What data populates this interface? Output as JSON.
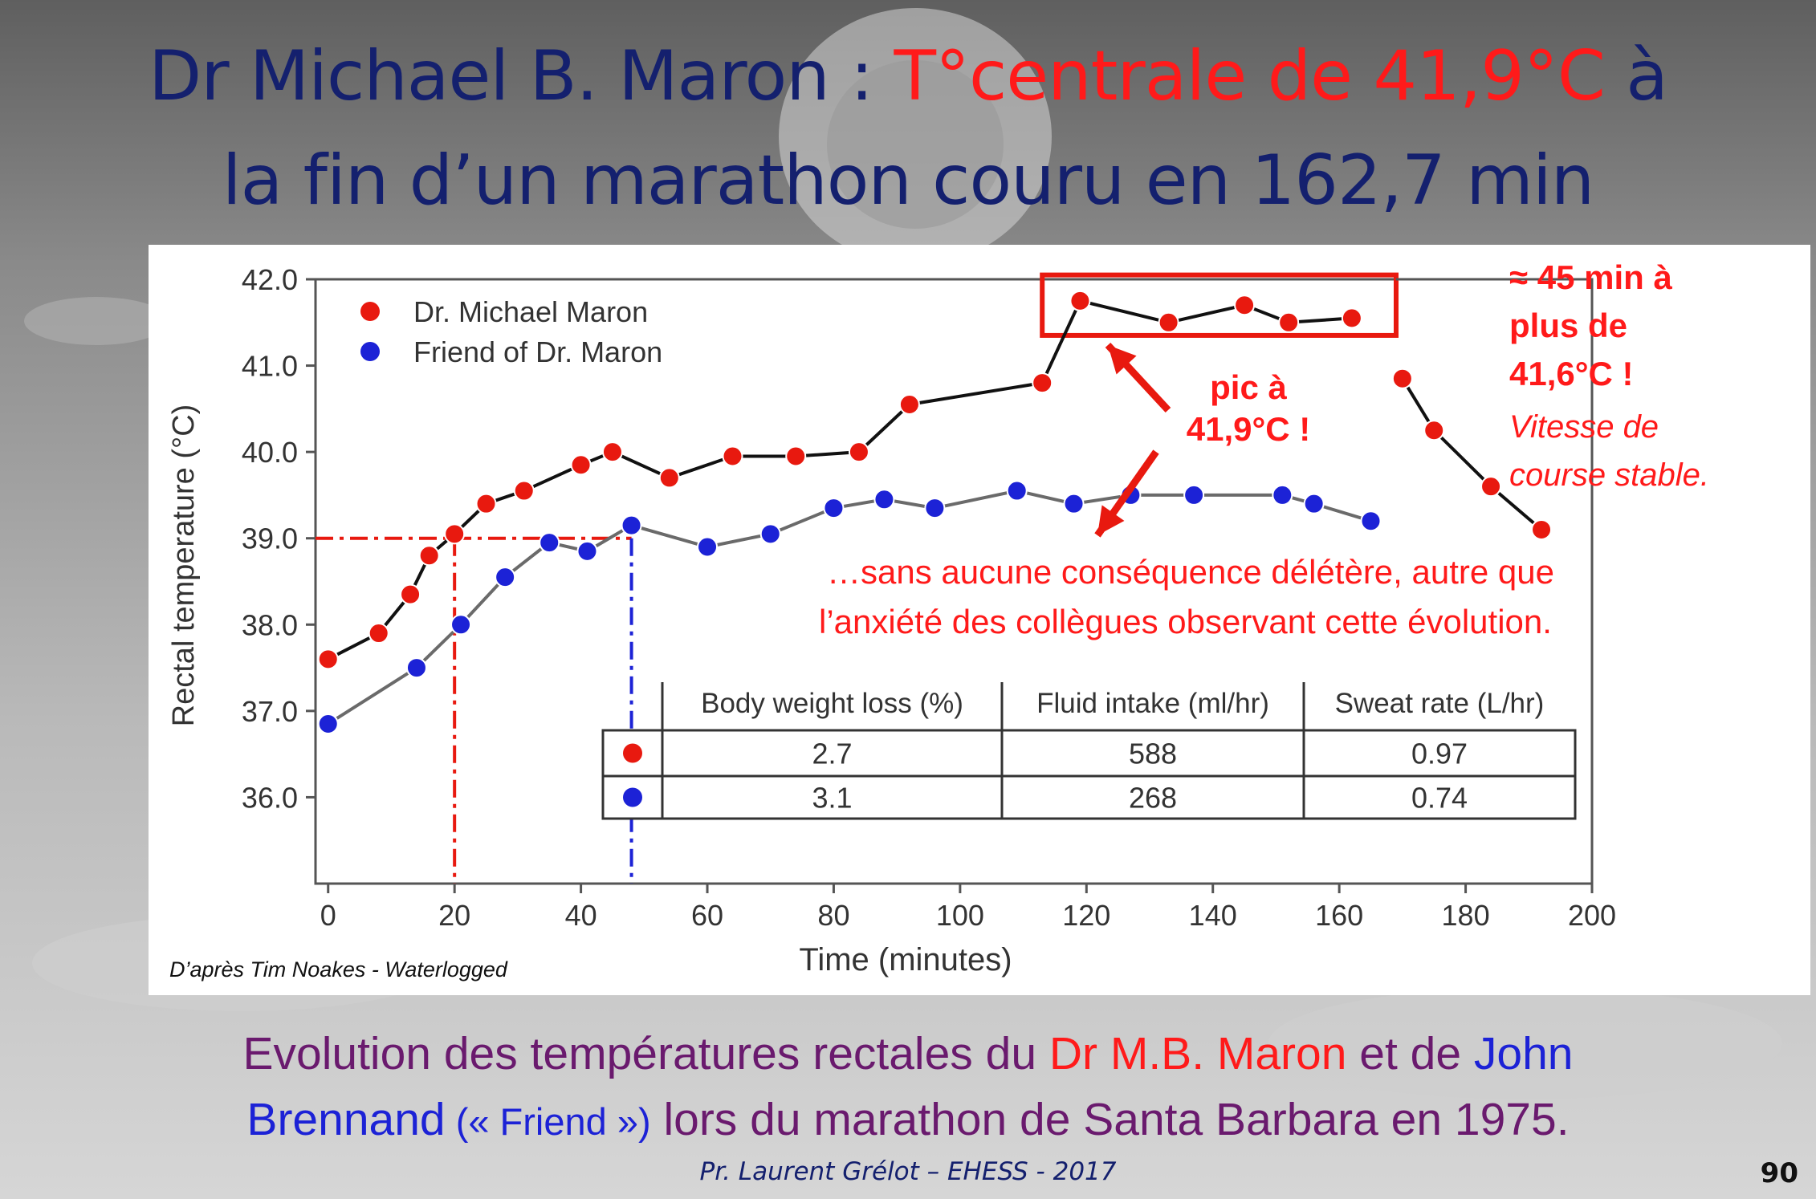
{
  "slide": {
    "title_part1": "Dr Michael B. Maron : ",
    "title_red": "T°centrale de 41,9°C",
    "title_part2": " à",
    "title_line2": "la fin d’un marathon couru en 162,7 min",
    "caption_a": "Evolution des températures rectales du ",
    "caption_red": "Dr M.B. Maron",
    "caption_b": " et de ",
    "caption_blue1": "John",
    "caption_blue2": "Brennand",
    "caption_blue_small": " (« Friend »)",
    "caption_c": " lors du marathon de Santa Barbara en 1975.",
    "footer": "Pr. Laurent Grélot – EHESS - 2017",
    "page_number": "90",
    "source_note": "D’après Tim Noakes - Waterlogged",
    "colors": {
      "title": "#14206e",
      "accent_red": "#ff1a1a",
      "accent_blue": "#1c22d6",
      "caption": "#6a1a6e"
    }
  },
  "annotations": {
    "plateau_lines": [
      "≈ 45 min à",
      "plus de",
      "41,6°C !"
    ],
    "plateau_italic": [
      "Vitesse de",
      "course stable."
    ],
    "peak_lines": [
      "pic à",
      "41,9°C !"
    ],
    "consequence_lines": [
      "…sans aucune conséquence délétère, autre que",
      "l’anxiété des collègues observant cette évolution."
    ]
  },
  "table": {
    "headers": [
      "Body weight loss (%)",
      "Fluid intake (ml/hr)",
      "Sweat rate (L/hr)"
    ],
    "rows": [
      {
        "marker": "#e8190f",
        "values": [
          "2.7",
          "588",
          "0.97"
        ]
      },
      {
        "marker": "#1c22d6",
        "values": [
          "3.1",
          "268",
          "0.74"
        ]
      }
    ]
  },
  "chart_data": {
    "type": "line",
    "xlabel": "Time (minutes)",
    "ylabel": "Rectal temperature (°C)",
    "xlim": [
      -2,
      200
    ],
    "ylim": [
      35.0,
      42.0
    ],
    "xticks": [
      0,
      20,
      40,
      60,
      80,
      100,
      120,
      140,
      160,
      180,
      200
    ],
    "yticks": [
      36.0,
      37.0,
      38.0,
      39.0,
      40.0,
      41.0,
      42.0
    ],
    "legend_position": "top-left",
    "series": [
      {
        "name": "Dr. Michael Maron",
        "color": "#e8190f",
        "segments": [
          [
            [
              0,
              37.6
            ],
            [
              8,
              37.9
            ],
            [
              13,
              38.35
            ],
            [
              16,
              38.8
            ],
            [
              20,
              39.05
            ],
            [
              25,
              39.4
            ],
            [
              31,
              39.55
            ],
            [
              40,
              39.85
            ],
            [
              45,
              40.0
            ],
            [
              54,
              39.7
            ],
            [
              64,
              39.95
            ],
            [
              74,
              39.95
            ],
            [
              84,
              40.0
            ],
            [
              92,
              40.55
            ],
            [
              113,
              40.8
            ],
            [
              119,
              41.75
            ],
            [
              133,
              41.5
            ],
            [
              145,
              41.7
            ],
            [
              152,
              41.5
            ],
            [
              162,
              41.55
            ]
          ],
          [
            [
              170,
              40.85
            ],
            [
              175,
              40.25
            ],
            [
              184,
              39.6
            ],
            [
              192,
              39.1
            ]
          ]
        ]
      },
      {
        "name": "Friend of Dr. Maron",
        "color": "#1c22d6",
        "segments": [
          [
            [
              0,
              36.85
            ],
            [
              14,
              37.5
            ],
            [
              21,
              38.0
            ],
            [
              28,
              38.55
            ],
            [
              35,
              38.95
            ],
            [
              41,
              38.85
            ],
            [
              48,
              39.15
            ],
            [
              60,
              38.9
            ],
            [
              70,
              39.05
            ],
            [
              80,
              39.35
            ],
            [
              88,
              39.45
            ],
            [
              96,
              39.35
            ],
            [
              109,
              39.55
            ],
            [
              118,
              39.4
            ],
            [
              127,
              39.5
            ],
            [
              137,
              39.5
            ],
            [
              151,
              39.5
            ],
            [
              156,
              39.4
            ],
            [
              165,
              39.2
            ]
          ]
        ]
      }
    ],
    "reference_lines": [
      {
        "y": 39.0,
        "x_end": 48,
        "color": "#e8190f",
        "style": "dash-dot"
      },
      {
        "x": 20,
        "y_end": 39.0,
        "color": "#e8190f",
        "style": "dash-dot"
      },
      {
        "x": 48,
        "y_end": 39.0,
        "color": "#1c22d6",
        "style": "dash-dot"
      }
    ],
    "highlight_box": {
      "x": [
        113,
        169
      ],
      "y": [
        41.35,
        42.05
      ],
      "color": "#e8190f"
    }
  }
}
